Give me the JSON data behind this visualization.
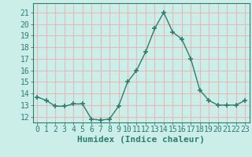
{
  "x": [
    0,
    1,
    2,
    3,
    4,
    5,
    6,
    7,
    8,
    9,
    10,
    11,
    12,
    13,
    14,
    15,
    16,
    17,
    18,
    19,
    20,
    21,
    22,
    23
  ],
  "y": [
    13.7,
    13.4,
    12.9,
    12.9,
    13.1,
    13.1,
    11.8,
    11.7,
    11.8,
    12.9,
    15.0,
    16.0,
    17.6,
    19.6,
    21.0,
    19.3,
    18.7,
    17.0,
    14.3,
    13.4,
    13.0,
    13.0,
    13.0,
    13.4
  ],
  "xlabel": "Humidex (Indice chaleur)",
  "ylim": [
    11.5,
    21.8
  ],
  "xlim": [
    -0.5,
    23.5
  ],
  "yticks": [
    12,
    13,
    14,
    15,
    16,
    17,
    18,
    19,
    20,
    21
  ],
  "xticks": [
    0,
    1,
    2,
    3,
    4,
    5,
    6,
    7,
    8,
    9,
    10,
    11,
    12,
    13,
    14,
    15,
    16,
    17,
    18,
    19,
    20,
    21,
    22,
    23
  ],
  "line_color": "#2e7d6e",
  "marker": "+",
  "marker_size": 4,
  "marker_lw": 1.2,
  "bg_color": "#cceee8",
  "grid_color": "#e8b8b8",
  "axes_color": "#2e7d6e",
  "xlabel_fontsize": 8,
  "tick_fontsize": 7
}
